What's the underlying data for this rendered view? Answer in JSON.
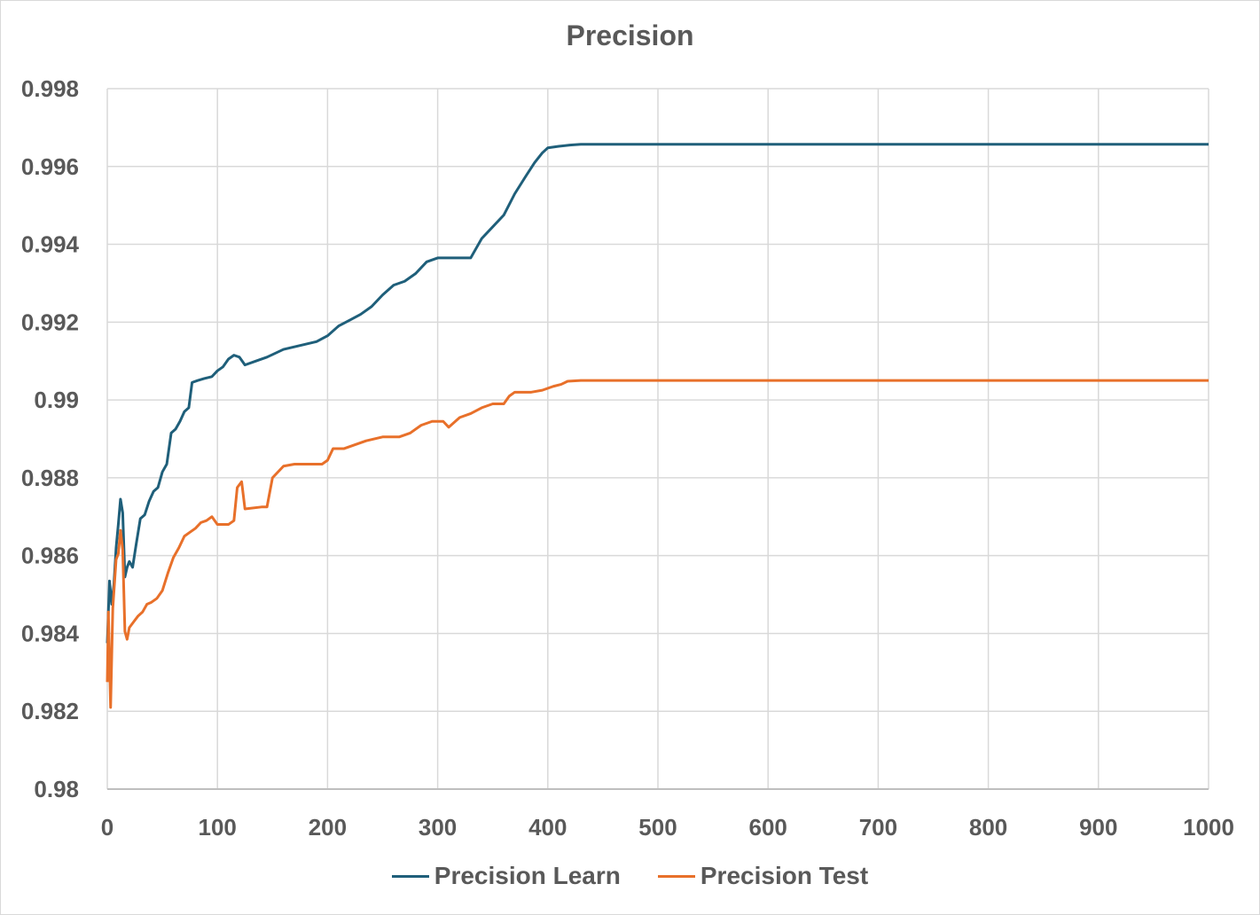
{
  "chart_data": {
    "type": "line",
    "title": "Precision",
    "xlabel": "",
    "ylabel": "",
    "xlim": [
      0,
      1000
    ],
    "ylim": [
      0.98,
      0.998
    ],
    "x_ticks": [
      "0",
      "100",
      "200",
      "300",
      "400",
      "500",
      "600",
      "700",
      "800",
      "900",
      "1000"
    ],
    "y_ticks": [
      "0.998",
      "0.996",
      "0.994",
      "0.992",
      "0.99",
      "0.988",
      "0.986",
      "0.984",
      "0.982",
      "0.98"
    ],
    "grid": true,
    "legend_position": "bottom",
    "series": [
      {
        "name": "Precision Learn",
        "color": "#1f5f7a",
        "points": [
          [
            0,
            0.98375
          ],
          [
            2,
            0.98535
          ],
          [
            4,
            0.98475
          ],
          [
            6,
            0.98525
          ],
          [
            8,
            0.9862
          ],
          [
            10,
            0.9868
          ],
          [
            12,
            0.98745
          ],
          [
            14,
            0.9871
          ],
          [
            16,
            0.98545
          ],
          [
            18,
            0.9857
          ],
          [
            20,
            0.98585
          ],
          [
            23,
            0.9857
          ],
          [
            26,
            0.98625
          ],
          [
            30,
            0.98695
          ],
          [
            34,
            0.98705
          ],
          [
            38,
            0.9874
          ],
          [
            42,
            0.98765
          ],
          [
            46,
            0.98775
          ],
          [
            50,
            0.98815
          ],
          [
            54,
            0.98835
          ],
          [
            58,
            0.98915
          ],
          [
            62,
            0.98925
          ],
          [
            66,
            0.98945
          ],
          [
            70,
            0.9897
          ],
          [
            74,
            0.9898
          ],
          [
            77,
            0.99045
          ],
          [
            82,
            0.9905
          ],
          [
            88,
            0.99055
          ],
          [
            95,
            0.9906
          ],
          [
            100,
            0.99075
          ],
          [
            105,
            0.99085
          ],
          [
            110,
            0.99105
          ],
          [
            115,
            0.99115
          ],
          [
            120,
            0.9911
          ],
          [
            125,
            0.9909
          ],
          [
            135,
            0.991
          ],
          [
            145,
            0.9911
          ],
          [
            160,
            0.9913
          ],
          [
            175,
            0.9914
          ],
          [
            190,
            0.9915
          ],
          [
            200,
            0.99165
          ],
          [
            210,
            0.9919
          ],
          [
            220,
            0.99205
          ],
          [
            230,
            0.9922
          ],
          [
            240,
            0.9924
          ],
          [
            250,
            0.9927
          ],
          [
            260,
            0.99295
          ],
          [
            270,
            0.99305
          ],
          [
            280,
            0.99325
          ],
          [
            290,
            0.99355
          ],
          [
            300,
            0.99365
          ],
          [
            310,
            0.99365
          ],
          [
            320,
            0.99365
          ],
          [
            330,
            0.99365
          ],
          [
            335,
            0.9939
          ],
          [
            340,
            0.99415
          ],
          [
            350,
            0.99445
          ],
          [
            360,
            0.99475
          ],
          [
            370,
            0.9953
          ],
          [
            380,
            0.99575
          ],
          [
            388,
            0.9961
          ],
          [
            395,
            0.99635
          ],
          [
            400,
            0.99648
          ],
          [
            410,
            0.99652
          ],
          [
            420,
            0.99655
          ],
          [
            430,
            0.99657
          ],
          [
            500,
            0.99657
          ],
          [
            600,
            0.99657
          ],
          [
            700,
            0.99657
          ],
          [
            800,
            0.99657
          ],
          [
            900,
            0.99657
          ],
          [
            1000,
            0.99657
          ]
        ]
      },
      {
        "name": "Precision Test",
        "color": "#e8702a",
        "points": [
          [
            0,
            0.98275
          ],
          [
            1,
            0.98455
          ],
          [
            3,
            0.9821
          ],
          [
            5,
            0.98465
          ],
          [
            8,
            0.9859
          ],
          [
            10,
            0.98605
          ],
          [
            12,
            0.98665
          ],
          [
            14,
            0.98615
          ],
          [
            16,
            0.98405
          ],
          [
            18,
            0.98385
          ],
          [
            20,
            0.98415
          ],
          [
            24,
            0.9843
          ],
          [
            28,
            0.98445
          ],
          [
            32,
            0.98455
          ],
          [
            36,
            0.98475
          ],
          [
            40,
            0.9848
          ],
          [
            45,
            0.9849
          ],
          [
            50,
            0.9851
          ],
          [
            55,
            0.98555
          ],
          [
            60,
            0.98595
          ],
          [
            65,
            0.9862
          ],
          [
            70,
            0.9865
          ],
          [
            75,
            0.9866
          ],
          [
            80,
            0.9867
          ],
          [
            85,
            0.98685
          ],
          [
            90,
            0.9869
          ],
          [
            95,
            0.987
          ],
          [
            100,
            0.9868
          ],
          [
            110,
            0.9868
          ],
          [
            115,
            0.9869
          ],
          [
            118,
            0.98775
          ],
          [
            122,
            0.9879
          ],
          [
            125,
            0.9872
          ],
          [
            140,
            0.98725
          ],
          [
            145,
            0.98725
          ],
          [
            150,
            0.988
          ],
          [
            160,
            0.9883
          ],
          [
            170,
            0.98835
          ],
          [
            180,
            0.98835
          ],
          [
            195,
            0.98835
          ],
          [
            200,
            0.98845
          ],
          [
            205,
            0.98875
          ],
          [
            215,
            0.98875
          ],
          [
            225,
            0.98885
          ],
          [
            235,
            0.98895
          ],
          [
            250,
            0.98905
          ],
          [
            265,
            0.98905
          ],
          [
            275,
            0.98915
          ],
          [
            285,
            0.98935
          ],
          [
            295,
            0.98945
          ],
          [
            305,
            0.98945
          ],
          [
            310,
            0.9893
          ],
          [
            320,
            0.98955
          ],
          [
            330,
            0.98965
          ],
          [
            340,
            0.9898
          ],
          [
            350,
            0.9899
          ],
          [
            360,
            0.9899
          ],
          [
            365,
            0.9901
          ],
          [
            370,
            0.9902
          ],
          [
            385,
            0.9902
          ],
          [
            395,
            0.99025
          ],
          [
            405,
            0.99035
          ],
          [
            412,
            0.9904
          ],
          [
            418,
            0.99048
          ],
          [
            430,
            0.9905
          ],
          [
            500,
            0.9905
          ],
          [
            600,
            0.9905
          ],
          [
            700,
            0.9905
          ],
          [
            800,
            0.9905
          ],
          [
            900,
            0.9905
          ],
          [
            1000,
            0.9905
          ]
        ]
      }
    ]
  }
}
